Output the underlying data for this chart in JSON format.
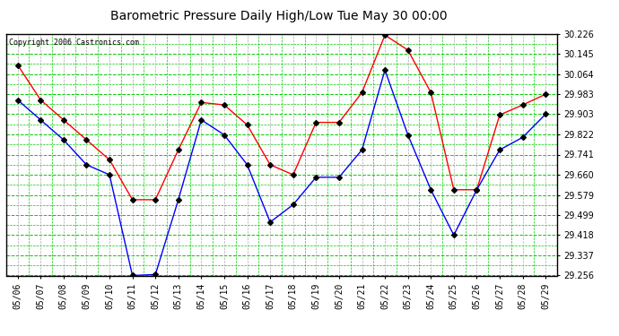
{
  "title": "Barometric Pressure Daily High/Low Tue May 30 00:00",
  "copyright": "Copyright 2006 Castronics.com",
  "dates": [
    "05/06",
    "05/07",
    "05/08",
    "05/09",
    "05/10",
    "05/11",
    "05/12",
    "05/13",
    "05/14",
    "05/15",
    "05/16",
    "05/17",
    "05/18",
    "05/19",
    "05/20",
    "05/21",
    "05/22",
    "05/23",
    "05/24",
    "05/25",
    "05/26",
    "05/27",
    "05/28",
    "05/29"
  ],
  "high": [
    30.1,
    29.96,
    29.88,
    29.8,
    29.72,
    29.56,
    29.56,
    29.76,
    29.95,
    29.94,
    29.86,
    29.7,
    29.66,
    29.87,
    29.87,
    29.99,
    30.22,
    30.16,
    29.99,
    29.6,
    29.6,
    29.9,
    29.94,
    29.983
  ],
  "low": [
    29.96,
    29.88,
    29.8,
    29.7,
    29.66,
    29.256,
    29.26,
    29.56,
    29.88,
    29.82,
    29.7,
    29.47,
    29.54,
    29.65,
    29.65,
    29.76,
    30.08,
    29.82,
    29.6,
    29.418,
    29.6,
    29.76,
    29.81,
    29.903
  ],
  "ymin": 29.256,
  "ymax": 30.226,
  "yticks": [
    30.226,
    30.145,
    30.064,
    29.983,
    29.903,
    29.822,
    29.741,
    29.66,
    29.579,
    29.499,
    29.418,
    29.337,
    29.256
  ],
  "bg_color": "#ffffff",
  "plot_bg": "#ffffff",
  "grid_green": "#00cc00",
  "grid_gray": "#aaaaaa",
  "high_color": "#ff0000",
  "low_color": "#0000ff",
  "marker_color": "#000000",
  "title_color": "#000000",
  "copyright_color": "#000000",
  "axis_color": "#000000",
  "tick_color": "#000000",
  "title_fontsize": 10,
  "tick_fontsize": 7,
  "copyright_fontsize": 6
}
